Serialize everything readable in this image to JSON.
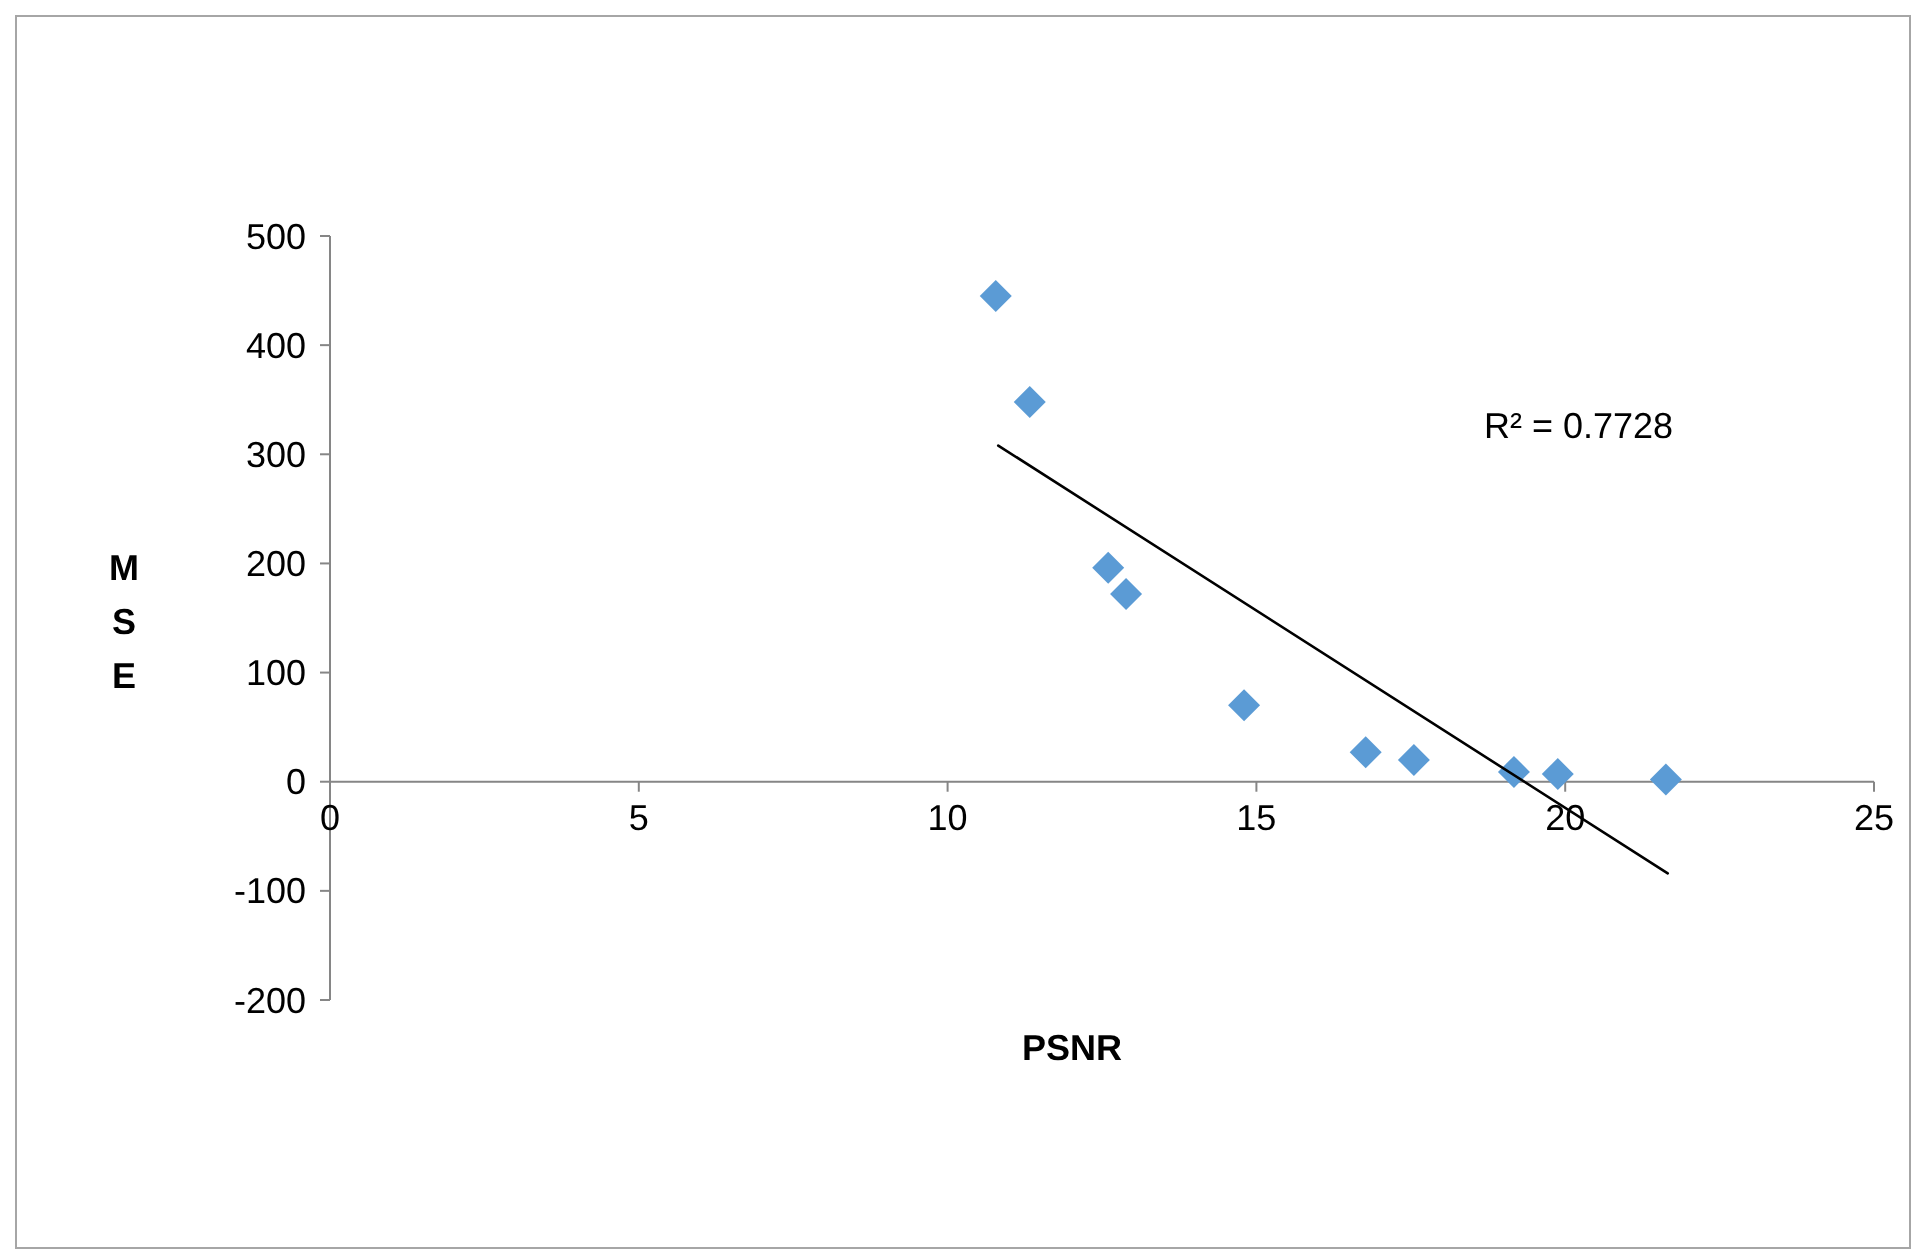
{
  "chart_data": {
    "type": "scatter",
    "xlabel": "PSNR",
    "ylabel": "MSE",
    "xlim": [
      0,
      25
    ],
    "xticks": [
      0,
      5,
      10,
      15,
      20,
      25
    ],
    "ylim": [
      -200,
      500
    ],
    "yticks": [
      -200,
      -100,
      0,
      100,
      200,
      300,
      400,
      500
    ],
    "grid": false,
    "annotations": [
      "R² = 0.7728"
    ],
    "series": [
      {
        "color": "#5b9bd5",
        "marker": "diamond",
        "x": [
          10.78,
          11.33,
          12.6,
          12.89,
          14.8,
          16.77,
          17.55,
          19.17,
          19.88,
          21.63
        ],
        "values": [
          445,
          348,
          196,
          172,
          70,
          27,
          20,
          9,
          7,
          2
        ]
      },
      {
        "type": "line",
        "color": "#000000",
        "marker": "none",
        "line_style": "solid",
        "x": [
          10.82,
          21.66
        ],
        "values": [
          308,
          -84
        ]
      }
    ]
  }
}
